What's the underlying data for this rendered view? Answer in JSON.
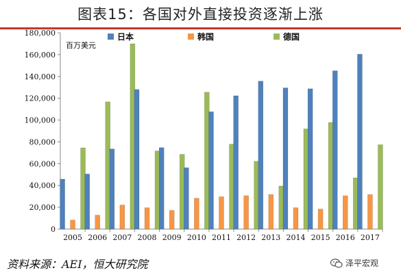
{
  "title": "图表15：各国对外直接投资逐渐上涨",
  "source": "资料来源：AEI，恒大研究院",
  "watermark": "泽平宏观",
  "colors": {
    "rule": "#c0392b",
    "japan": "#4f81bd",
    "korea": "#f79646",
    "germany": "#9bbb59"
  },
  "chart_data": {
    "type": "bar",
    "unit_label": "百万美元",
    "categories": [
      "2005",
      "2006",
      "2007",
      "2008",
      "2009",
      "2010",
      "2011",
      "2012",
      "2013",
      "2014",
      "2015",
      "2016",
      "2017"
    ],
    "ylim": [
      0,
      180000
    ],
    "yticks": [
      "0",
      "20,000",
      "40,000",
      "60,000",
      "80,000",
      "100,000",
      "120,000",
      "140,000",
      "160,000",
      "180,000"
    ],
    "legend_position": "top",
    "grid": false,
    "series": [
      {
        "name": "日本",
        "color": "#4f81bd",
        "values": [
          45800,
          50500,
          73500,
          128000,
          74700,
          56300,
          107600,
          122300,
          135700,
          129500,
          128700,
          145200,
          160400
        ]
      },
      {
        "name": "韩国",
        "color": "#f79646",
        "values": [
          8300,
          12800,
          22100,
          19600,
          17200,
          28300,
          29700,
          30600,
          31700,
          19600,
          18400,
          30600,
          31700
        ]
      },
      {
        "name": "德国",
        "color": "#9bbb59",
        "values": [
          74500,
          116700,
          170000,
          71700,
          68600,
          125500,
          77900,
          62200,
          39500,
          91900,
          97800,
          47000,
          77400
        ]
      }
    ]
  }
}
